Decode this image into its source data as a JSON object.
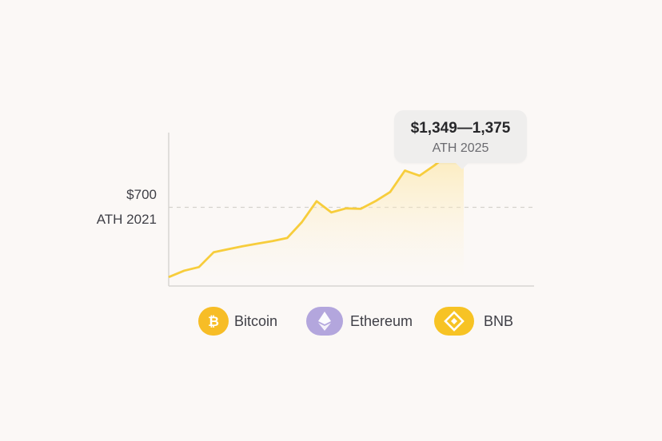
{
  "chart_data": {
    "type": "area",
    "title": "",
    "xlabel": "",
    "ylabel": "",
    "grid": false,
    "ylim": [
      0,
      1400
    ],
    "series": [
      {
        "name": "BNB",
        "color": "#f7cd3c",
        "values": [
          20,
          80,
          115,
          260,
          290,
          320,
          345,
          370,
          400,
          555,
          760,
          650,
          690,
          685,
          760,
          850,
          1060,
          1010,
          1110,
          1220,
          1362
        ]
      }
    ],
    "reference_line": {
      "value": 700,
      "label": "$700",
      "caption": "ATH 2021"
    },
    "annotation": {
      "value": "$1,349—1,375",
      "caption": "ATH 2025"
    },
    "legend": [
      {
        "label": "Bitcoin",
        "icon": "bitcoin-icon",
        "color": "#f7bd26"
      },
      {
        "label": "Ethereum",
        "icon": "ethereum-icon",
        "color": "#b3a6dd"
      },
      {
        "label": "BNB",
        "icon": "bnb-icon",
        "color": "#f7c324"
      }
    ]
  }
}
